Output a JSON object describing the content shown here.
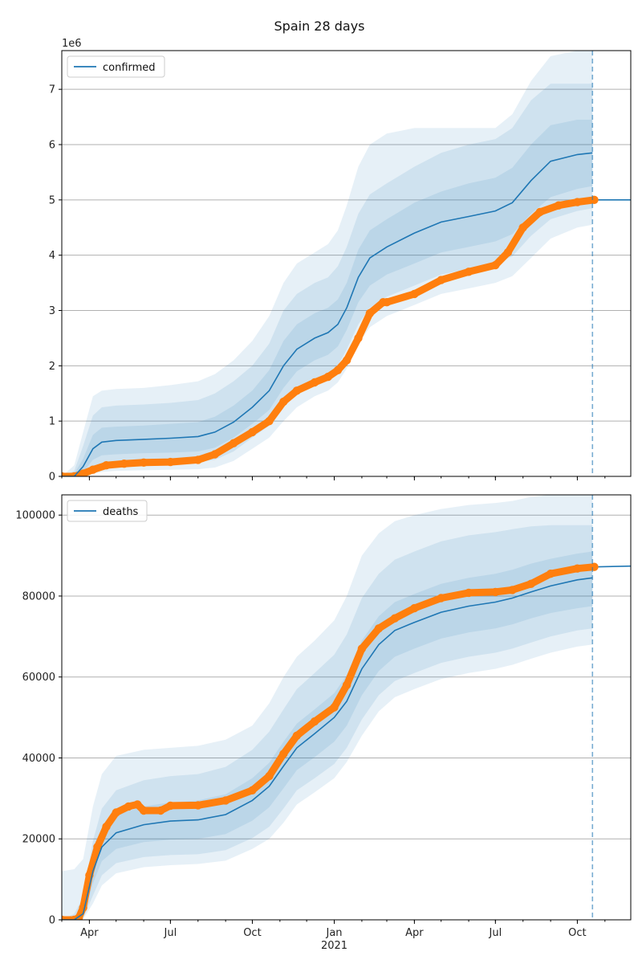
{
  "figure": {
    "title": "Spain 28 days"
  },
  "colors": {
    "model": "#1f77b4",
    "observed": "#ff7f0e",
    "band": "#1f77b4",
    "grid": "#b0b0b0",
    "axis": "#000000"
  },
  "chart_data": [
    {
      "type": "line",
      "id": "confirmed",
      "legend": "confirmed",
      "legend_position": "upper-left",
      "offset_label": "1e6",
      "scale": 1000000,
      "ylim": [
        0,
        7.7
      ],
      "yticks": [
        0,
        1,
        2,
        3,
        4,
        5,
        6,
        7
      ],
      "ytick_labels": [
        "0",
        "1",
        "2",
        "3",
        "4",
        "5",
        "6",
        "7"
      ],
      "grid": "horizontal",
      "xlim": [
        "2020-03-01",
        "2021-11-30"
      ],
      "xticks": [
        {
          "date": "2020-04-01",
          "label": "Apr"
        },
        {
          "date": "2020-07-01",
          "label": "Jul"
        },
        {
          "date": "2020-10-01",
          "label": "Oct"
        },
        {
          "date": "2021-01-01",
          "label": "Jan"
        },
        {
          "date": "2021-04-01",
          "label": "Apr"
        },
        {
          "date": "2021-07-01",
          "label": "Jul"
        },
        {
          "date": "2021-10-01",
          "label": "Oct"
        }
      ],
      "forecast_start": "2021-10-18",
      "model": {
        "x": [
          "2020-03-01",
          "2020-03-15",
          "2020-03-25",
          "2020-04-05",
          "2020-04-15",
          "2020-05-01",
          "2020-06-01",
          "2020-07-01",
          "2020-08-01",
          "2020-08-20",
          "2020-09-10",
          "2020-10-01",
          "2020-10-20",
          "2020-11-05",
          "2020-11-20",
          "2020-12-10",
          "2020-12-25",
          "2021-01-05",
          "2021-01-15",
          "2021-01-28",
          "2021-02-10",
          "2021-03-01",
          "2021-04-01",
          "2021-05-01",
          "2021-06-01",
          "2021-07-01",
          "2021-07-20",
          "2021-08-10",
          "2021-09-01",
          "2021-10-01",
          "2021-10-18"
        ],
        "y": [
          0.0,
          0.0,
          0.18,
          0.5,
          0.62,
          0.65,
          0.67,
          0.69,
          0.72,
          0.8,
          0.98,
          1.25,
          1.55,
          2.0,
          2.3,
          2.5,
          2.6,
          2.75,
          3.05,
          3.6,
          3.95,
          4.15,
          4.4,
          4.6,
          4.7,
          4.8,
          4.95,
          5.35,
          5.7,
          5.82,
          5.85
        ],
        "band50_low": [
          0.0,
          0.0,
          0.08,
          0.3,
          0.38,
          0.4,
          0.42,
          0.43,
          0.45,
          0.52,
          0.7,
          0.95,
          1.2,
          1.6,
          1.9,
          2.1,
          2.2,
          2.35,
          2.65,
          3.15,
          3.45,
          3.65,
          3.85,
          4.05,
          4.15,
          4.25,
          4.38,
          4.75,
          5.05,
          5.2,
          5.25
        ],
        "band50_high": [
          0.0,
          0.05,
          0.32,
          0.75,
          0.88,
          0.9,
          0.92,
          0.95,
          0.98,
          1.08,
          1.28,
          1.55,
          1.92,
          2.45,
          2.75,
          2.95,
          3.05,
          3.2,
          3.5,
          4.1,
          4.45,
          4.65,
          4.95,
          5.15,
          5.3,
          5.4,
          5.58,
          6.0,
          6.35,
          6.45,
          6.45
        ],
        "band75_low": [
          0.0,
          0.0,
          0.02,
          0.12,
          0.2,
          0.22,
          0.24,
          0.25,
          0.26,
          0.3,
          0.45,
          0.7,
          0.92,
          1.3,
          1.55,
          1.75,
          1.85,
          2.0,
          2.3,
          2.75,
          3.05,
          3.25,
          3.45,
          3.65,
          3.75,
          3.85,
          3.98,
          4.35,
          4.65,
          4.8,
          4.85
        ],
        "band75_high": [
          0.0,
          0.1,
          0.55,
          1.1,
          1.25,
          1.28,
          1.3,
          1.33,
          1.38,
          1.5,
          1.72,
          2.0,
          2.4,
          3.0,
          3.3,
          3.5,
          3.6,
          3.8,
          4.15,
          4.75,
          5.1,
          5.3,
          5.6,
          5.85,
          6.0,
          6.1,
          6.3,
          6.8,
          7.1,
          7.1,
          7.1
        ],
        "band95_low": [
          0.0,
          0.0,
          0.0,
          0.05,
          0.08,
          0.1,
          0.11,
          0.12,
          0.13,
          0.16,
          0.28,
          0.5,
          0.7,
          1.0,
          1.25,
          1.45,
          1.55,
          1.7,
          1.95,
          2.4,
          2.7,
          2.9,
          3.1,
          3.3,
          3.4,
          3.5,
          3.62,
          3.95,
          4.3,
          4.5,
          4.55
        ],
        "band95_high": [
          0.0,
          0.2,
          0.8,
          1.45,
          1.55,
          1.58,
          1.6,
          1.65,
          1.72,
          1.85,
          2.1,
          2.45,
          2.9,
          3.5,
          3.85,
          4.05,
          4.2,
          4.45,
          4.9,
          5.6,
          6.0,
          6.2,
          6.3,
          6.3,
          6.3,
          6.3,
          6.55,
          7.15,
          7.6,
          7.7,
          7.7
        ]
      },
      "observed": {
        "x": [
          "2020-03-01",
          "2020-03-15",
          "2020-03-25",
          "2020-04-05",
          "2020-04-20",
          "2020-05-10",
          "2020-06-01",
          "2020-07-01",
          "2020-08-01",
          "2020-08-20",
          "2020-09-10",
          "2020-10-01",
          "2020-10-20",
          "2020-11-05",
          "2020-11-20",
          "2020-12-10",
          "2020-12-25",
          "2021-01-05",
          "2021-01-15",
          "2021-01-28",
          "2021-02-10",
          "2021-02-25",
          "2021-03-01",
          "2021-04-01",
          "2021-05-01",
          "2021-06-01",
          "2021-07-01",
          "2021-07-15",
          "2021-08-01",
          "2021-08-20",
          "2021-09-10",
          "2021-10-01",
          "2021-10-20"
        ],
        "y": [
          0.0,
          0.0,
          0.05,
          0.12,
          0.2,
          0.23,
          0.25,
          0.26,
          0.3,
          0.4,
          0.6,
          0.8,
          1.0,
          1.35,
          1.55,
          1.7,
          1.8,
          1.92,
          2.1,
          2.5,
          2.95,
          3.15,
          3.15,
          3.3,
          3.55,
          3.7,
          3.82,
          4.05,
          4.5,
          4.78,
          4.9,
          4.96,
          5.0
        ]
      },
      "projection": {
        "x": [
          "2021-10-20",
          "2021-11-30"
        ],
        "y": [
          5.0,
          5.0
        ]
      }
    },
    {
      "type": "line",
      "id": "deaths",
      "legend": "deaths",
      "legend_position": "upper-left",
      "scale": 1,
      "ylim": [
        0,
        105000
      ],
      "yticks": [
        0,
        20000,
        40000,
        60000,
        80000,
        100000
      ],
      "ytick_labels": [
        "0",
        "20000",
        "40000",
        "60000",
        "80000",
        "100000"
      ],
      "grid": "horizontal",
      "xlim": [
        "2020-03-01",
        "2021-11-30"
      ],
      "xticks": [
        {
          "date": "2020-04-01",
          "label": "Apr"
        },
        {
          "date": "2020-07-01",
          "label": "Jul"
        },
        {
          "date": "2020-10-01",
          "label": "Oct"
        },
        {
          "date": "2021-01-01",
          "label": "Jan"
        },
        {
          "date": "2021-04-01",
          "label": "Apr"
        },
        {
          "date": "2021-07-01",
          "label": "Jul"
        },
        {
          "date": "2021-10-01",
          "label": "Oct"
        }
      ],
      "x_year_label": "2021",
      "forecast_start": "2021-10-18",
      "model": {
        "x": [
          "2020-03-01",
          "2020-03-15",
          "2020-03-25",
          "2020-04-05",
          "2020-04-15",
          "2020-05-01",
          "2020-06-01",
          "2020-07-01",
          "2020-08-01",
          "2020-09-01",
          "2020-10-01",
          "2020-10-20",
          "2020-11-05",
          "2020-11-20",
          "2020-12-10",
          "2021-01-01",
          "2021-01-15",
          "2021-02-01",
          "2021-02-20",
          "2021-03-10",
          "2021-04-01",
          "2021-05-01",
          "2021-06-01",
          "2021-07-01",
          "2021-07-20",
          "2021-08-10",
          "2021-09-01",
          "2021-10-01",
          "2021-10-18"
        ],
        "y": [
          0,
          0,
          1500,
          12000,
          18000,
          21500,
          23500,
          24400,
          24700,
          26000,
          29500,
          33000,
          38000,
          42500,
          46000,
          50000,
          54000,
          62000,
          68000,
          71500,
          73500,
          76000,
          77500,
          78500,
          79500,
          81000,
          82500,
          84000,
          84500
        ],
        "band50_low": [
          0,
          0,
          800,
          9000,
          14500,
          17500,
          19200,
          19800,
          20000,
          21200,
          24500,
          27800,
          32500,
          37000,
          40200,
          44000,
          48000,
          55500,
          61500,
          65000,
          67000,
          69500,
          71000,
          72000,
          73000,
          74500,
          75800,
          77000,
          77500
        ],
        "band50_high": [
          0,
          300,
          3200,
          15500,
          22000,
          26000,
          28000,
          29000,
          29500,
          31000,
          35000,
          38800,
          44000,
          48500,
          52000,
          56000,
          60500,
          69000,
          75000,
          78500,
          80500,
          83000,
          84500,
          85500,
          86500,
          88000,
          89200,
          90500,
          91000
        ],
        "band75_low": [
          0,
          0,
          400,
          6000,
          11000,
          14000,
          15500,
          16000,
          16200,
          17200,
          20200,
          23000,
          27500,
          32000,
          35000,
          38500,
          42500,
          49500,
          55500,
          59000,
          61000,
          63500,
          65000,
          66000,
          67000,
          68500,
          70000,
          71500,
          72000
        ],
        "band75_high": [
          0,
          1500,
          5500,
          19500,
          27500,
          32000,
          34500,
          35500,
          36000,
          37800,
          42000,
          46500,
          52000,
          57000,
          61000,
          65500,
          70500,
          79500,
          85500,
          89000,
          91000,
          93500,
          95000,
          95800,
          96500,
          97200,
          97500,
          97500,
          97500
        ],
        "band95_low": [
          0,
          0,
          200,
          4000,
          8500,
          11500,
          13000,
          13500,
          13800,
          14600,
          17500,
          20000,
          24000,
          28500,
          31500,
          35000,
          39000,
          45500,
          51500,
          55000,
          57000,
          59500,
          61000,
          62000,
          63000,
          64500,
          66000,
          67500,
          68000
        ],
        "band95_high": [
          12000,
          12500,
          15000,
          28000,
          36000,
          40500,
          42000,
          42500,
          43000,
          44500,
          48000,
          53500,
          60000,
          65000,
          69000,
          74000,
          80000,
          90000,
          95500,
          98500,
          100000,
          101500,
          102500,
          103000,
          103500,
          104500,
          105000,
          105000,
          105000
        ]
      },
      "observed": {
        "x": [
          "2020-03-01",
          "2020-03-15",
          "2020-03-20",
          "2020-03-25",
          "2020-04-01",
          "2020-04-10",
          "2020-04-20",
          "2020-05-01",
          "2020-05-15",
          "2020-05-25",
          "2020-06-01",
          "2020-06-20",
          "2020-07-01",
          "2020-08-01",
          "2020-09-01",
          "2020-10-01",
          "2020-10-20",
          "2020-11-05",
          "2020-11-20",
          "2020-12-10",
          "2021-01-01",
          "2021-01-15",
          "2021-02-01",
          "2021-02-20",
          "2021-03-10",
          "2021-04-01",
          "2021-05-01",
          "2021-06-01",
          "2021-07-01",
          "2021-07-20",
          "2021-08-10",
          "2021-09-01",
          "2021-10-01",
          "2021-10-20"
        ],
        "y": [
          0,
          0,
          500,
          3000,
          11000,
          18000,
          23000,
          26500,
          28000,
          28500,
          27000,
          27000,
          28200,
          28300,
          29500,
          32000,
          35500,
          41000,
          45500,
          49000,
          52500,
          58000,
          67000,
          72000,
          74500,
          77000,
          79500,
          80800,
          81000,
          81500,
          83000,
          85500,
          86800,
          87200
        ]
      },
      "projection": {
        "x": [
          "2021-10-20",
          "2021-11-30"
        ],
        "y": [
          87200,
          87400
        ]
      }
    }
  ]
}
